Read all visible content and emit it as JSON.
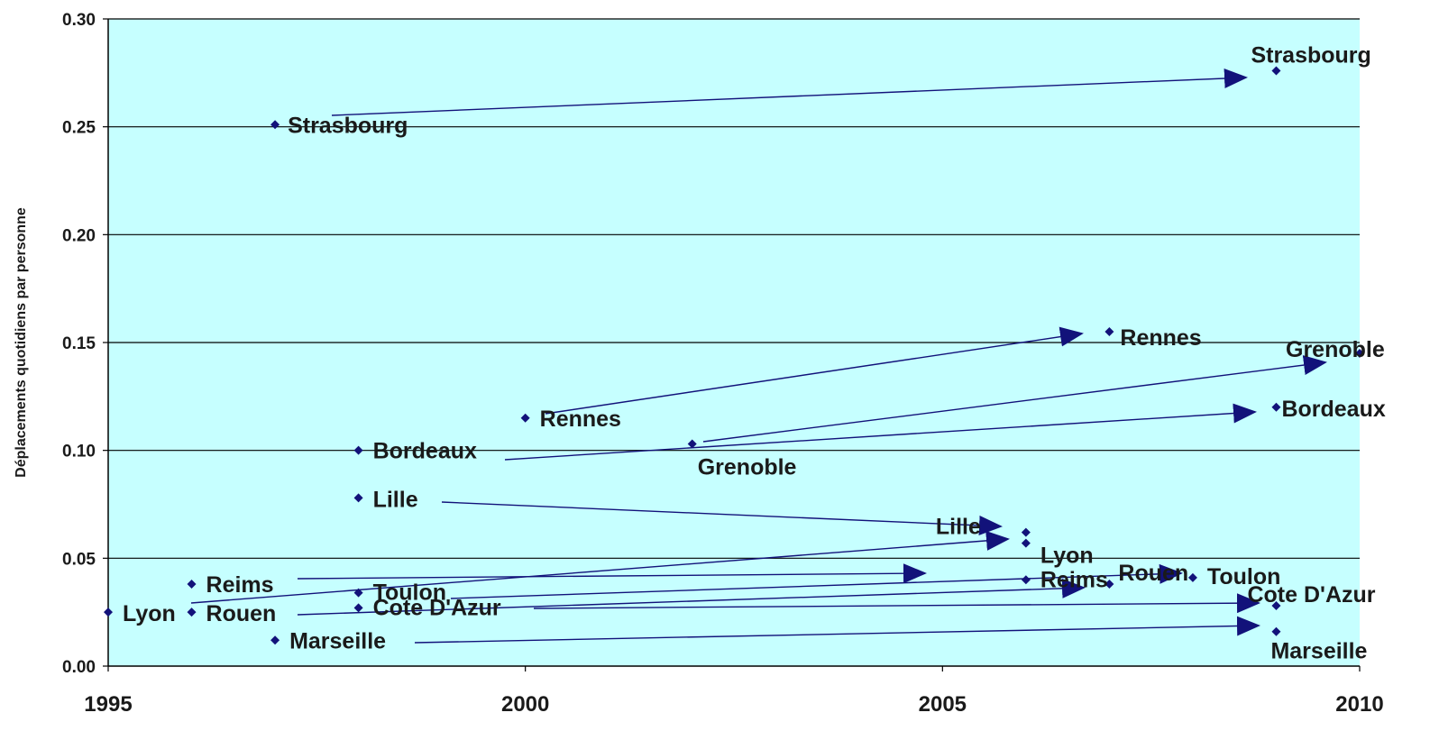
{
  "chart_data": {
    "type": "scatter",
    "title": "",
    "xlabel": "",
    "ylabel": "Déplacements quotidiens par personne",
    "xlim": [
      1995,
      2010
    ],
    "ylim": [
      0,
      0.3
    ],
    "x_ticks": [
      "1995",
      "2000",
      "2005",
      "2010"
    ],
    "y_ticks": [
      "0.00",
      "0.05",
      "0.10",
      "0.15",
      "0.20",
      "0.25",
      "0.30"
    ],
    "grid": "horizontal",
    "legend": "none",
    "colors": {
      "plot_background": "#c6ffff",
      "marker": "#12127a",
      "arrow": "#12127a",
      "grid": "#000000"
    },
    "points": [
      {
        "label": "Strasbourg",
        "x": 1997,
        "y": 0.251
      },
      {
        "label": "Strasbourg",
        "x": 2009,
        "y": 0.276
      },
      {
        "label": "Rennes",
        "x": 2000,
        "y": 0.115
      },
      {
        "label": "Rennes",
        "x": 2007,
        "y": 0.155
      },
      {
        "label": "Grenoble",
        "x": 2002,
        "y": 0.103
      },
      {
        "label": "Grenoble",
        "x": 2010,
        "y": 0.145
      },
      {
        "label": "Bordeaux",
        "x": 1998,
        "y": 0.1
      },
      {
        "label": "Bordeaux",
        "x": 2009,
        "y": 0.12
      },
      {
        "label": "Lille",
        "x": 1998,
        "y": 0.078
      },
      {
        "label": "Lille",
        "x": 2006,
        "y": 0.062
      },
      {
        "label": "Lyon",
        "x": 1995,
        "y": 0.025
      },
      {
        "label": "Lyon",
        "x": 2006,
        "y": 0.057
      },
      {
        "label": "Reims",
        "x": 1996,
        "y": 0.038
      },
      {
        "label": "Reims",
        "x": 2006,
        "y": 0.04
      },
      {
        "label": "Rouen",
        "x": 1996,
        "y": 0.025
      },
      {
        "label": "Rouen",
        "x": 2007,
        "y": 0.038
      },
      {
        "label": "Toulon",
        "x": 1998,
        "y": 0.034
      },
      {
        "label": "Toulon",
        "x": 2008,
        "y": 0.041
      },
      {
        "label": "Cote D'Azur",
        "x": 1998,
        "y": 0.027
      },
      {
        "label": "Cote D'Azur",
        "x": 2009,
        "y": 0.028
      },
      {
        "label": "Marseille",
        "x": 1997,
        "y": 0.012
      },
      {
        "label": "Marseille",
        "x": 2009,
        "y": 0.016
      }
    ]
  }
}
